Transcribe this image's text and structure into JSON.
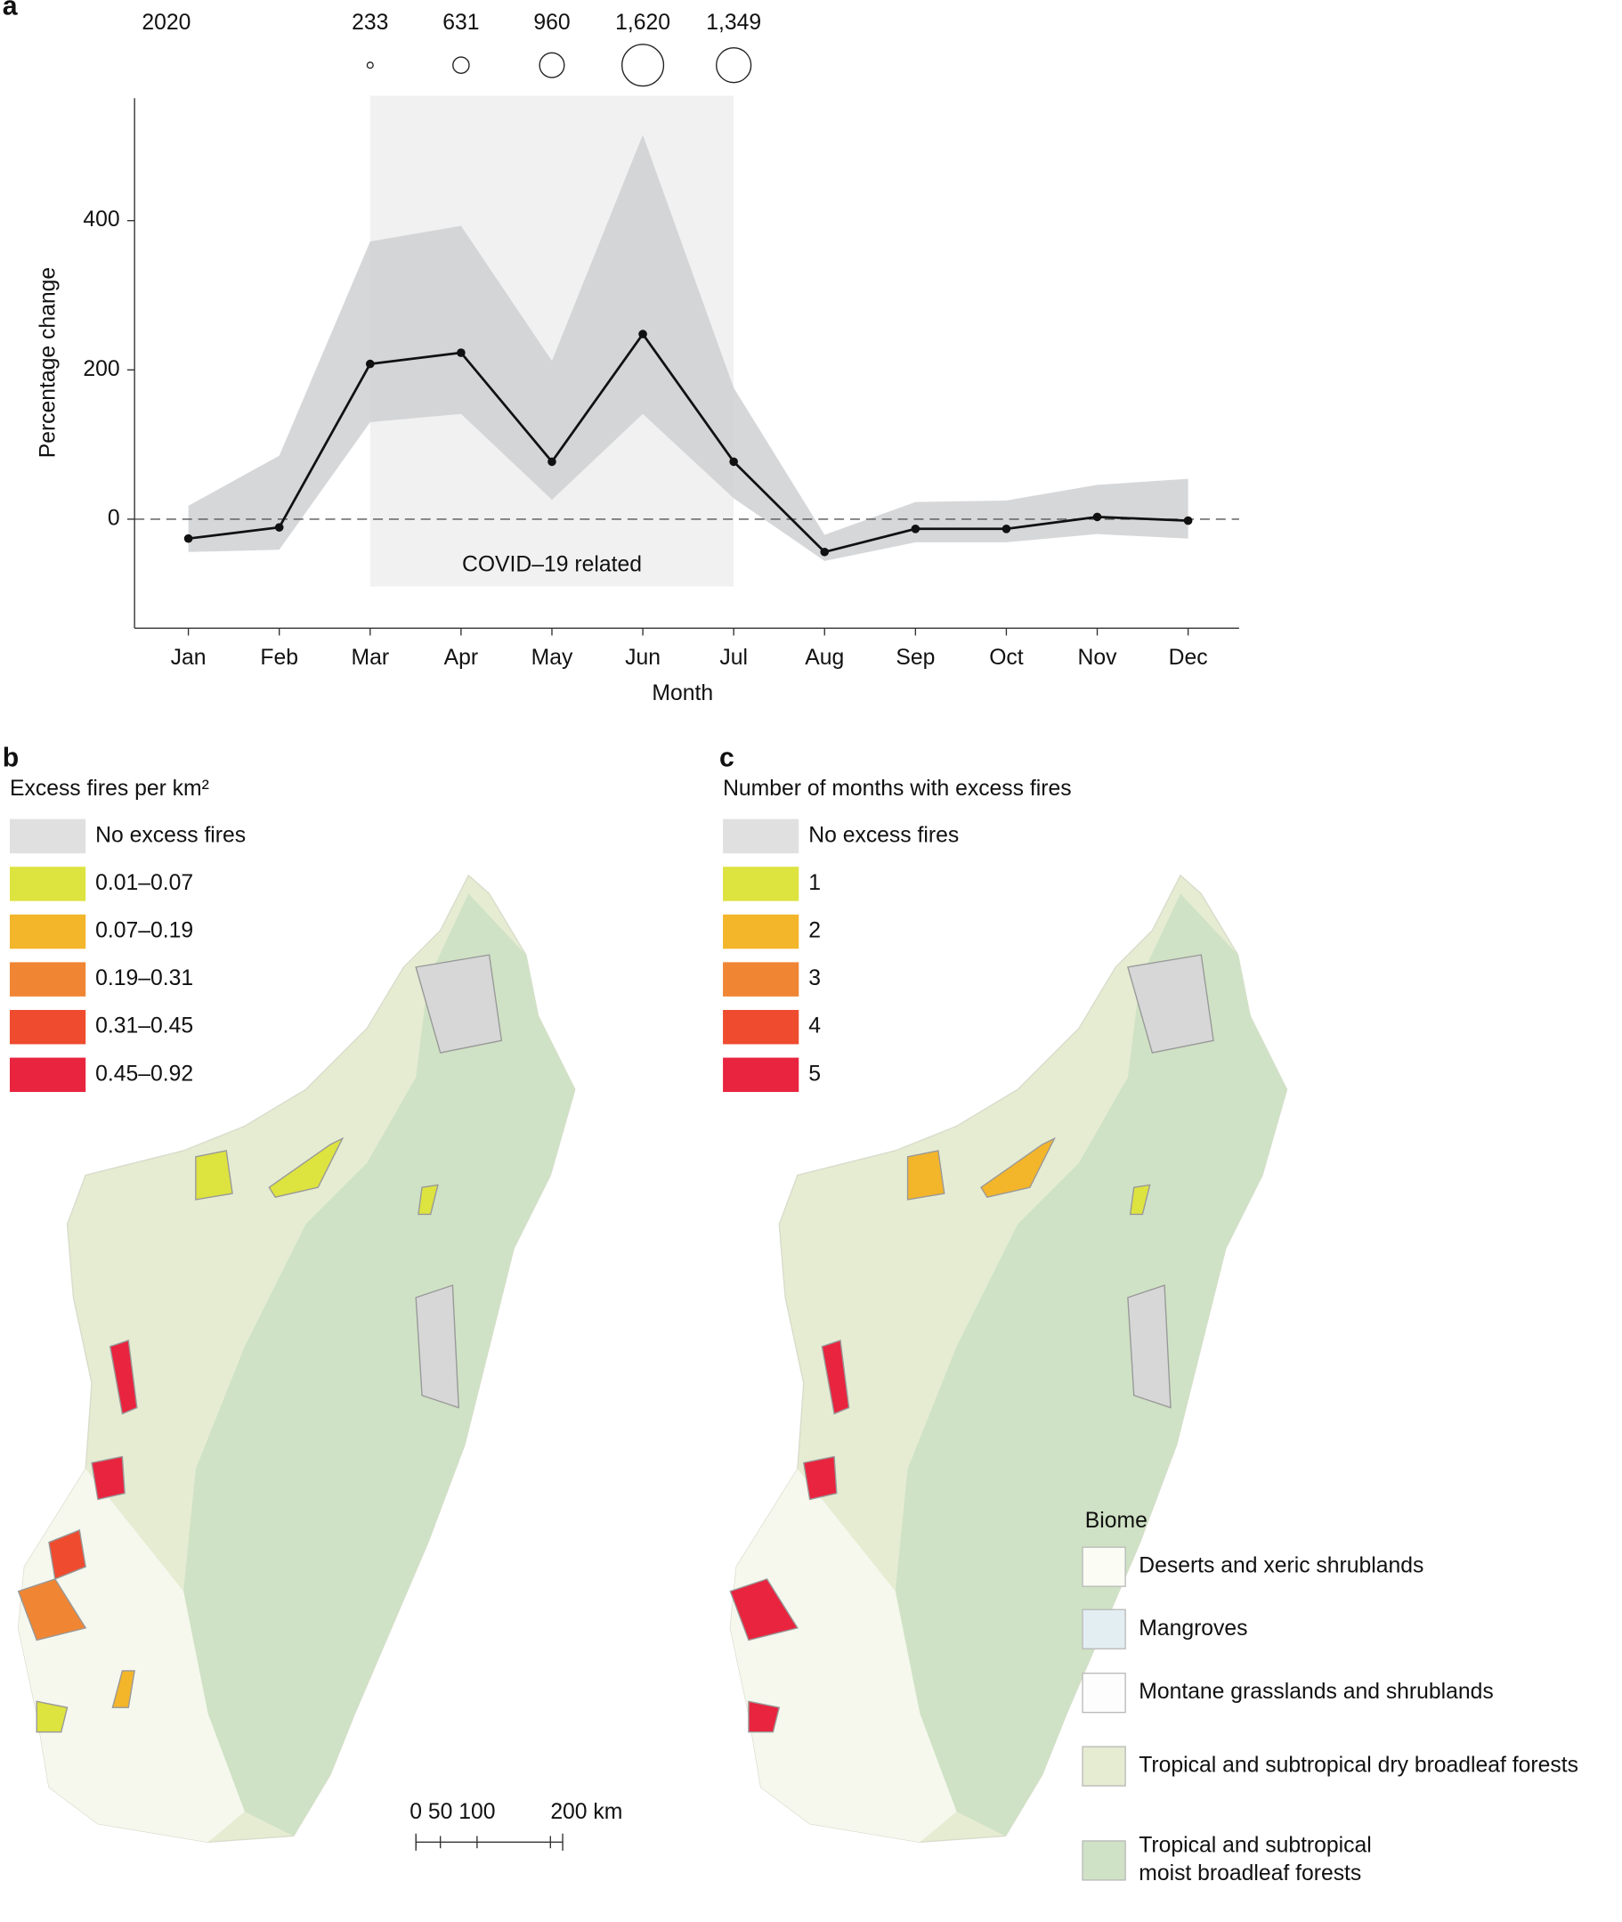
{
  "chart_data": {
    "type": "line",
    "panel": "a",
    "x_label": "Month",
    "y_label": "Percentage change",
    "categories": [
      "Jan",
      "Feb",
      "Mar",
      "Apr",
      "May",
      "Jun",
      "Jul",
      "Aug",
      "Sep",
      "Oct",
      "Nov",
      "Dec"
    ],
    "values": [
      -26,
      -11,
      208,
      223,
      77,
      248,
      77,
      -44,
      -13,
      -13,
      3,
      -2
    ],
    "upper": [
      18,
      85,
      372,
      393,
      212,
      515,
      176,
      -21,
      23,
      25,
      46,
      54
    ],
    "lower": [
      -44,
      -41,
      130,
      141,
      26,
      141,
      28,
      -56,
      -31,
      -31,
      -20,
      -26
    ],
    "color": "#111111",
    "band_color": "#cfd0d2",
    "ylim": [
      -146,
      564
    ],
    "yticks": [
      0,
      200,
      400
    ],
    "zero_line": true,
    "highlight": {
      "start": "Mar",
      "end": "Jul",
      "label": "COVID–19 related",
      "color": "#f1f1f1"
    },
    "bubbles": {
      "label": "2020",
      "categories": [
        "Mar",
        "Apr",
        "May",
        "Jun",
        "Jul"
      ],
      "values": [
        233,
        631,
        960,
        1620,
        1349
      ],
      "value_labels": [
        "233",
        "631",
        "960",
        "1,620",
        "1,349"
      ]
    }
  },
  "map_b": {
    "panel": "b",
    "legend_title": "Excess fires per km²",
    "legend": [
      {
        "label": "No excess fires",
        "color": "#e0e0e0"
      },
      {
        "label": "0.01–0.07",
        "color": "#dde33f"
      },
      {
        "label": "0.07–0.19",
        "color": "#f3b52a"
      },
      {
        "label": "0.19–0.31",
        "color": "#f08533"
      },
      {
        "label": "0.31–0.45",
        "color": "#ee4b2f"
      },
      {
        "label": "0.45–0.92",
        "color": "#e8243e"
      }
    ]
  },
  "map_c": {
    "panel": "c",
    "legend_title": "Number of months with excess fires",
    "legend": [
      {
        "label": "No excess fires",
        "color": "#e0e0e0"
      },
      {
        "label": "1",
        "color": "#dde33f"
      },
      {
        "label": "2",
        "color": "#f3b52a"
      },
      {
        "label": "3",
        "color": "#f08533"
      },
      {
        "label": "4",
        "color": "#ee4b2f"
      },
      {
        "label": "5",
        "color": "#e8243e"
      }
    ]
  },
  "biome_legend": {
    "title": "Biome",
    "items": [
      {
        "label": "Deserts and xeric shrublands",
        "color": "#fbfcf4"
      },
      {
        "label": "Mangroves",
        "color": "#e3eef3"
      },
      {
        "label": "Montane grasslands and shrublands",
        "color": "#fdfdfd"
      },
      {
        "label": "Tropical and subtropical dry broadleaf forests",
        "color": "#e6ecd2"
      },
      {
        "label": "Tropical and subtropical moist broadleaf forests",
        "color": "#cfe2c5"
      }
    ]
  },
  "scale_bar": {
    "labels": [
      "0",
      "50",
      "100",
      "200 km"
    ]
  }
}
